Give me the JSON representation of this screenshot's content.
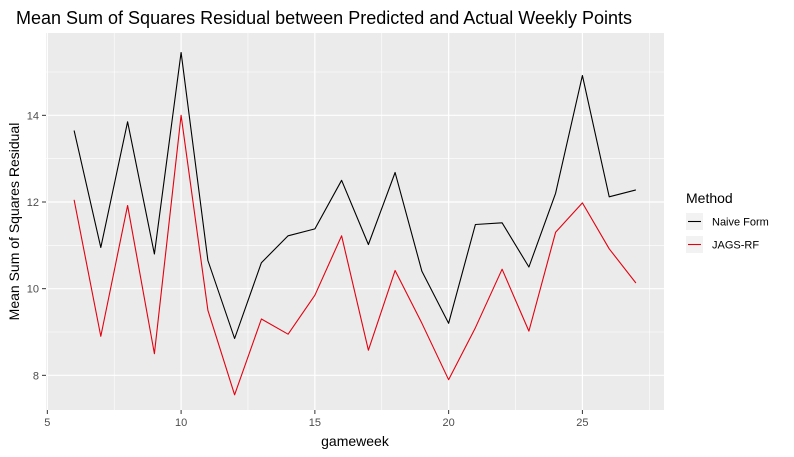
{
  "chart_data": {
    "type": "line",
    "title": "Mean Sum of Squares Residual between Predicted and Actual Weekly Points",
    "xlabel": "gameweek",
    "ylabel": "Mean Sum of Squares Residual",
    "xlim": [
      4.95,
      28.05
    ],
    "ylim": [
      7.2,
      15.9
    ],
    "xticks": [
      5,
      10,
      15,
      20,
      25
    ],
    "yticks": [
      8,
      10,
      12,
      14
    ],
    "grid": true,
    "legend": {
      "title": "Method",
      "position": "right"
    },
    "x": [
      6,
      7,
      8,
      9,
      10,
      11,
      12,
      13,
      14,
      15,
      16,
      17,
      18,
      19,
      20,
      21,
      22,
      23,
      24,
      25,
      26,
      27
    ],
    "series": [
      {
        "name": "Naive Form",
        "color": "#000000",
        "values": [
          13.65,
          10.95,
          13.85,
          10.8,
          15.45,
          10.65,
          8.85,
          10.6,
          11.22,
          11.38,
          12.5,
          11.02,
          12.68,
          10.4,
          9.2,
          11.48,
          11.52,
          10.5,
          12.2,
          14.92,
          12.12,
          12.28
        ]
      },
      {
        "name": "JAGS-RF",
        "color": "#e3000f",
        "values": [
          12.05,
          8.9,
          11.92,
          8.5,
          14.0,
          9.5,
          7.55,
          9.3,
          8.95,
          9.85,
          11.22,
          8.58,
          10.42,
          9.2,
          7.9,
          9.1,
          10.45,
          9.02,
          11.3,
          11.98,
          10.92,
          10.13
        ]
      }
    ]
  }
}
